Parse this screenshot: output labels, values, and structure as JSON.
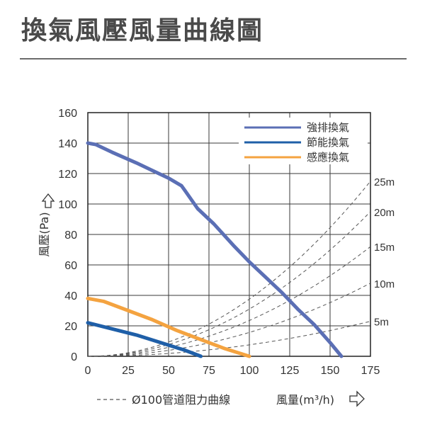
{
  "title": "換氣風壓風量曲線圖",
  "chart_data": {
    "type": "line",
    "xlabel": "風量(m³/h)",
    "ylabel": "風壓(Pa)",
    "xlim": [
      0,
      175
    ],
    "ylim": [
      0,
      160
    ],
    "x_ticks": [
      "0",
      "25",
      "50",
      "75",
      "100",
      "125",
      "150",
      "175"
    ],
    "y_ticks": [
      "0",
      "20",
      "40",
      "60",
      "80",
      "100",
      "120",
      "140",
      "160"
    ],
    "grid": true,
    "legend_position": "top-right",
    "series": [
      {
        "name": "強排換氣",
        "color": "#5b6fb5",
        "x": [
          0,
          5,
          15,
          30,
          40,
          50,
          58,
          60,
          68,
          78,
          90,
          100,
          110,
          120,
          130,
          140,
          150,
          157
        ],
        "y": [
          140,
          139,
          134,
          127,
          122,
          117,
          112,
          109,
          97,
          87,
          73,
          62,
          52,
          42,
          31,
          21,
          9,
          0
        ]
      },
      {
        "name": "節能換氣",
        "color": "#1f5fa8",
        "x": [
          0,
          15,
          30,
          45,
          60,
          70
        ],
        "y": [
          22,
          18,
          14,
          9,
          4,
          0
        ]
      },
      {
        "name": "感應換氣",
        "color": "#f4a340",
        "x": [
          0,
          10,
          25,
          40,
          55,
          70,
          85,
          100
        ],
        "y": [
          38,
          36,
          30,
          24,
          17,
          11,
          5,
          0
        ]
      }
    ],
    "resistance_curves": {
      "legend": "Ø100管道阻力曲線",
      "color": "#555555",
      "labels": [
        "25m",
        "20m",
        "15m",
        "10m",
        "5m"
      ],
      "y_at_x175": [
        115,
        95,
        72,
        48,
        23
      ]
    }
  }
}
